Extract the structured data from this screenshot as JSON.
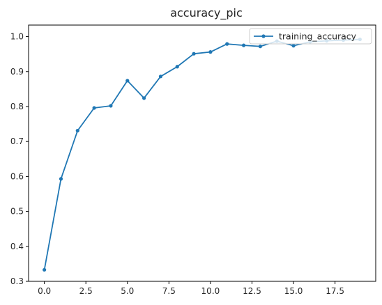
{
  "chart_data": {
    "type": "line",
    "title": "accuracy_pic",
    "xlabel": "",
    "ylabel": "",
    "xlim": [
      -0.95,
      19.95
    ],
    "ylim": [
      0.3,
      1.033
    ],
    "xticks": [
      0.0,
      2.5,
      5.0,
      7.5,
      10.0,
      12.5,
      15.0,
      17.5
    ],
    "xtick_labels": [
      "0.0",
      "2.5",
      "5.0",
      "7.5",
      "10.0",
      "12.5",
      "15.0",
      "17.5"
    ],
    "yticks": [
      0.3,
      0.4,
      0.5,
      0.6,
      0.7,
      0.8,
      0.9,
      1.0
    ],
    "ytick_labels": [
      "0.3",
      "0.4",
      "0.5",
      "0.6",
      "0.7",
      "0.8",
      "0.9",
      "1.0"
    ],
    "grid": false,
    "legend": "top-right",
    "series": [
      {
        "name": "training_accuracy",
        "color": "#1f77b4",
        "marker": "dot",
        "x": [
          0,
          1,
          2,
          3,
          4,
          5,
          6,
          7,
          8,
          9,
          10,
          11,
          12,
          13,
          14,
          15,
          16,
          17,
          18,
          19
        ],
        "y": [
          0.333,
          0.593,
          0.731,
          0.796,
          0.802,
          0.874,
          0.824,
          0.886,
          0.914,
          0.951,
          0.956,
          0.979,
          0.975,
          0.972,
          0.987,
          0.974,
          0.985,
          0.988,
          0.99,
          0.992
        ]
      }
    ]
  }
}
